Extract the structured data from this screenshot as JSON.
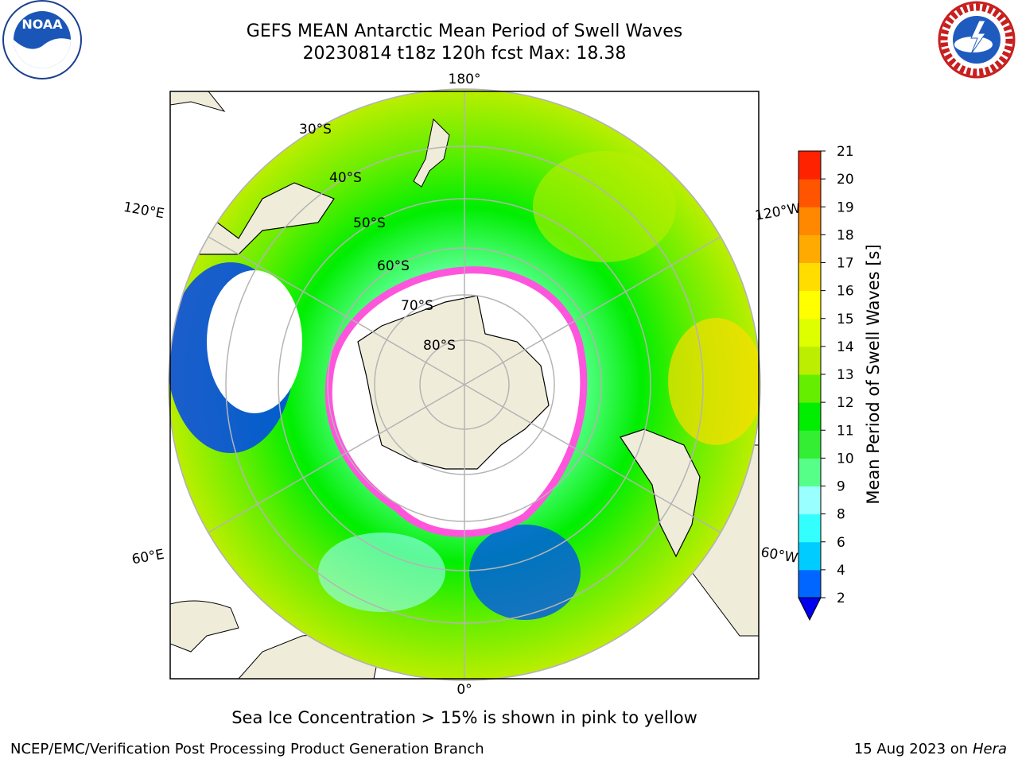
{
  "title": {
    "line1": "GEFS MEAN Antarctic Mean Period of Swell Waves",
    "line2": "20230814 t18z 120h fcst   Max: 18.38"
  },
  "map": {
    "projection": "south-polar-stereographic",
    "latitude_labels": [
      "30°S",
      "40°S",
      "50°S",
      "60°S",
      "70°S",
      "80°S"
    ],
    "longitude_labels": {
      "top": "180°",
      "bottom": "0°",
      "upper_left": "120°E",
      "lower_left": "60°E",
      "upper_right": "120°W",
      "lower_right": "60°W"
    },
    "colors": {
      "land": "#efedda",
      "sea_ice_fill": "#ffffff",
      "sea_ice_edge": "#ff55dd",
      "grid": "#b4b4b4"
    }
  },
  "colorbar": {
    "label": "Mean Period of Swell Waves [s]",
    "ticks": [
      "2",
      "4",
      "6",
      "8",
      "9",
      "10",
      "11",
      "12",
      "13",
      "14",
      "15",
      "16",
      "17",
      "18",
      "19",
      "20",
      "21"
    ],
    "colors": [
      "#0066ff",
      "#00ccff",
      "#33ffff",
      "#99ffff",
      "#55ff88",
      "#33ee33",
      "#00ee00",
      "#66ee00",
      "#bbee00",
      "#ddff00",
      "#ffff00",
      "#ffdd00",
      "#ffaa00",
      "#ff8800",
      "#ff5500",
      "#ff2200"
    ],
    "under_color": "#0000ee"
  },
  "subtitle": "Sea Ice Concentration > 15% is shown in pink to yellow",
  "footer": {
    "left": "NCEP/EMC/Verification Post Processing Product Generation Branch",
    "date": "15 Aug 2023 on",
    "machine": "Hera"
  }
}
